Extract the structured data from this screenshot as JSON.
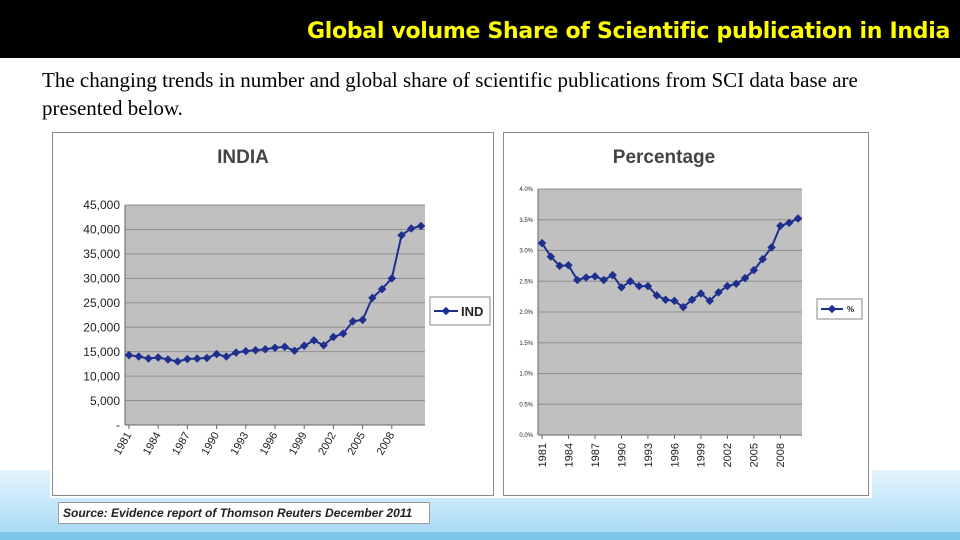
{
  "slide": {
    "title": "Global volume Share of Scientific publication in India",
    "intro": "The changing trends in number and global share of scientific publications from SCI data base are presented below.",
    "source": "Source: Evidence report of Thomson Reuters December 2011"
  },
  "colors": {
    "line": "#1f2f8f",
    "plot_bg": "#c0c0c0",
    "title_text": "#ffff00"
  },
  "chart_data": [
    {
      "type": "line",
      "title": "INDIA",
      "ylim": [
        0,
        45000
      ],
      "y_ticks": [
        "-",
        "5,000",
        "10,000",
        "15,000",
        "20,000",
        "25,000",
        "30,000",
        "35,000",
        "40,000",
        "45,000"
      ],
      "x_ticks": [
        "1981",
        "1984",
        "1987",
        "1990",
        "1993",
        "1996",
        "1999",
        "2002",
        "2005",
        "2008"
      ],
      "grid": true,
      "legend": "right",
      "series": [
        {
          "name": "IND",
          "x": [
            1981,
            1982,
            1983,
            1984,
            1985,
            1986,
            1987,
            1988,
            1989,
            1990,
            1991,
            1992,
            1993,
            1994,
            1995,
            1996,
            1997,
            1998,
            1999,
            2000,
            2001,
            2002,
            2003,
            2004,
            2005,
            2006,
            2007,
            2008,
            2009,
            2010,
            2011
          ],
          "values": [
            14300,
            14000,
            13600,
            13800,
            13400,
            13000,
            13500,
            13600,
            13700,
            14500,
            14000,
            14800,
            15100,
            15300,
            15500,
            15800,
            16000,
            15200,
            16200,
            17300,
            16300,
            18000,
            18700,
            21200,
            21500,
            26000,
            27800,
            30000,
            38800,
            40200,
            40700
          ]
        }
      ]
    },
    {
      "type": "line",
      "title": "Percentage",
      "ylim": [
        0,
        4.0
      ],
      "y_ticks": [
        "0.0%",
        "0.5%",
        "1.0%",
        "1.5%",
        "2.0%",
        "2.5%",
        "3.0%",
        "3.5%",
        "4.0%"
      ],
      "x_ticks": [
        "1981",
        "1984",
        "1987",
        "1990",
        "1993",
        "1996",
        "1999",
        "2002",
        "2005",
        "2008"
      ],
      "grid": true,
      "legend": "right",
      "series": [
        {
          "name": "%",
          "x": [
            1981,
            1982,
            1983,
            1984,
            1985,
            1986,
            1987,
            1988,
            1989,
            1990,
            1991,
            1992,
            1993,
            1994,
            1995,
            1996,
            1997,
            1998,
            1999,
            2000,
            2001,
            2002,
            2003,
            2004,
            2005,
            2006,
            2007,
            2008,
            2009,
            2010
          ],
          "values": [
            3.12,
            2.9,
            2.75,
            2.76,
            2.52,
            2.56,
            2.58,
            2.52,
            2.6,
            2.4,
            2.5,
            2.42,
            2.42,
            2.27,
            2.2,
            2.18,
            2.08,
            2.2,
            2.3,
            2.18,
            2.32,
            2.42,
            2.46,
            2.55,
            2.68,
            2.86,
            3.05,
            3.4,
            3.45,
            3.52
          ]
        }
      ]
    }
  ]
}
